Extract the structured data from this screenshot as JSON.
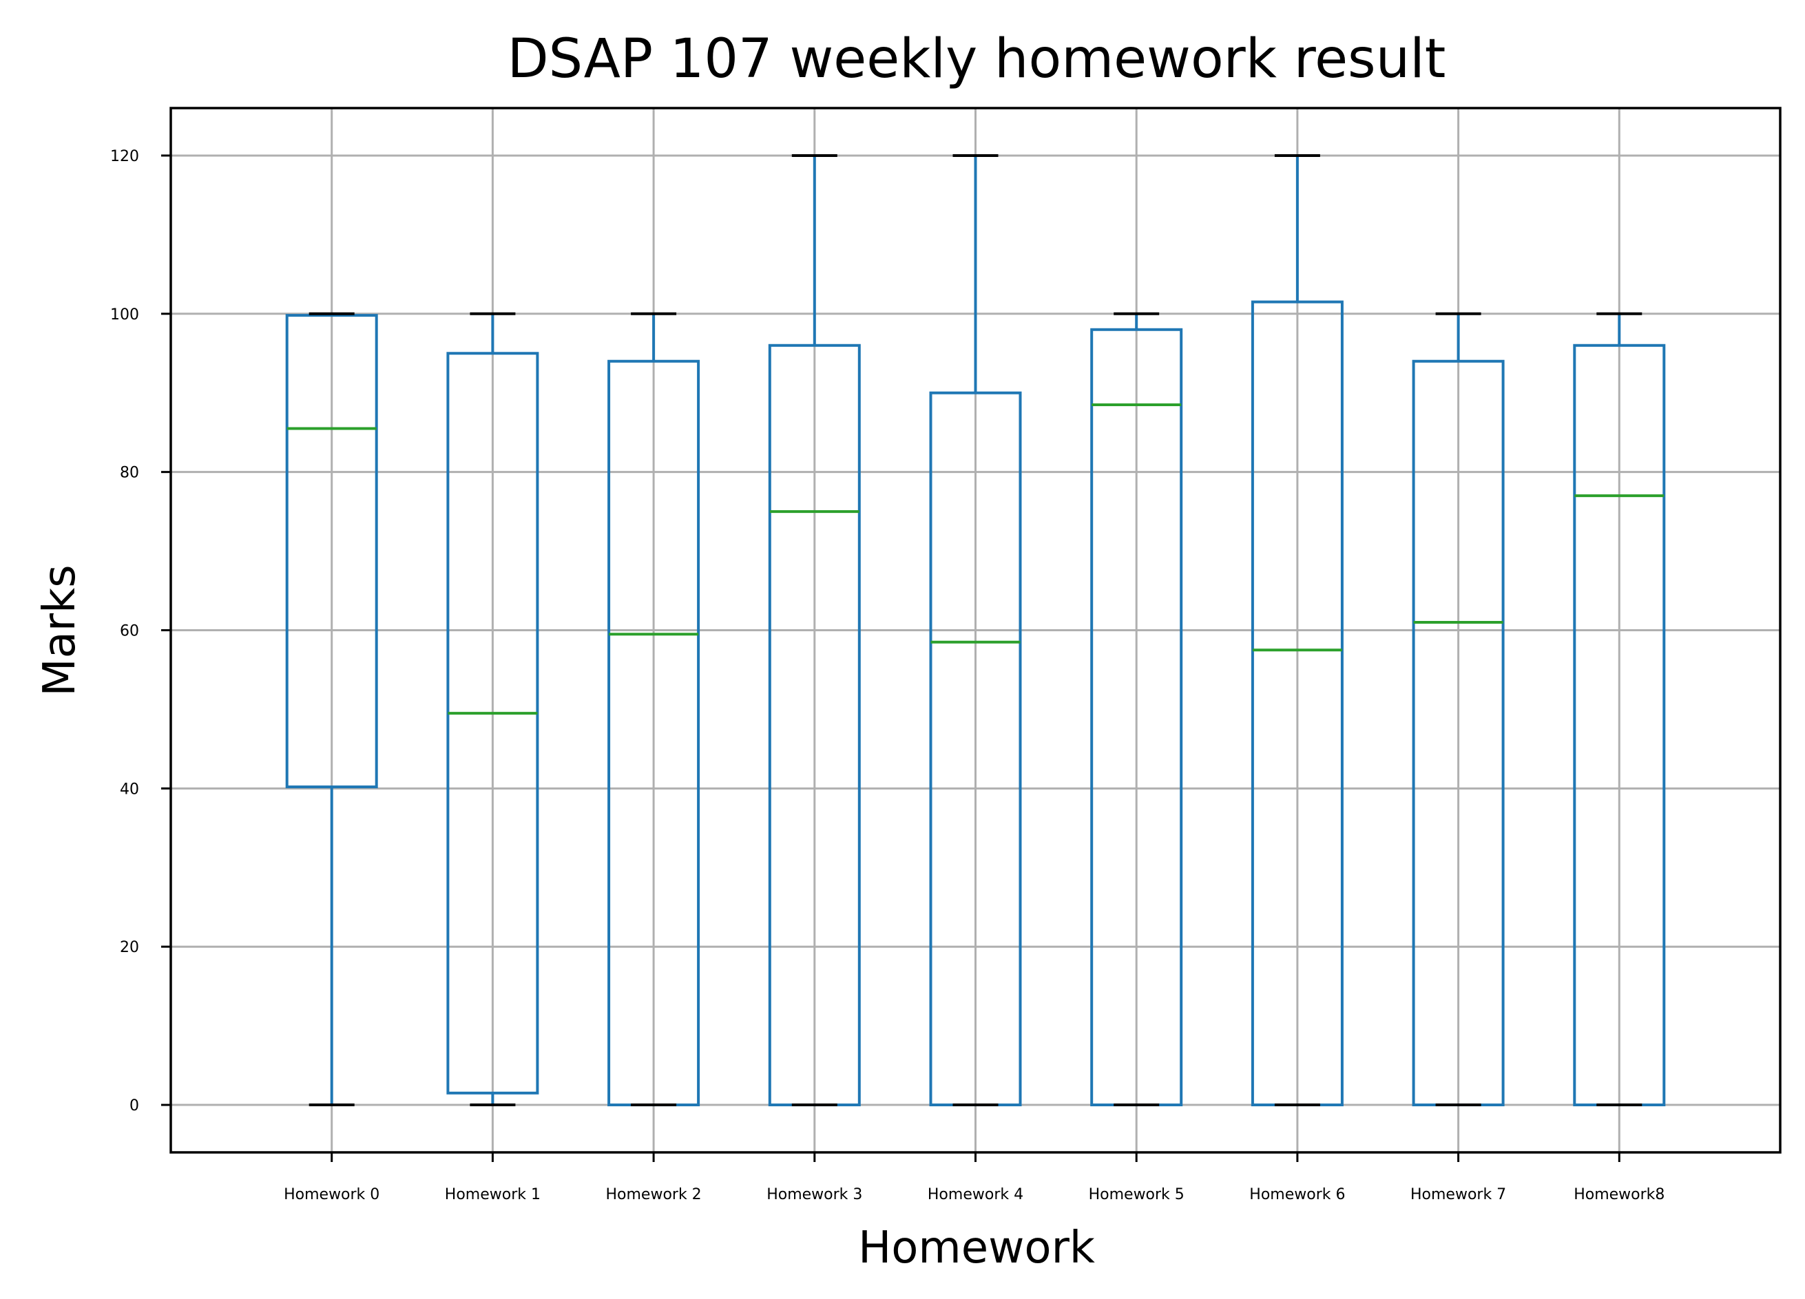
{
  "chart_data": {
    "type": "box",
    "title": "DSAP 107 weekly homework result",
    "xlabel": "Homework",
    "ylabel": "Marks",
    "ylim": [
      -6,
      126
    ],
    "yticks": [
      0,
      20,
      40,
      60,
      80,
      100,
      120
    ],
    "grid": true,
    "legend": "none",
    "colors": {
      "box": "#1f77b4",
      "median": "#2ca02c",
      "whisker_cap": "#000000",
      "grid": "#b0b0b0"
    },
    "categories": [
      "Homework 0",
      "Homework 1",
      "Homework 2",
      "Homework 3",
      "Homework 4",
      "Homework 5",
      "Homework 6",
      "Homework 7",
      "Homework8"
    ],
    "boxes": [
      {
        "whisker_low": 0,
        "q1": 40.2,
        "median": 85.5,
        "q3": 99.8,
        "whisker_high": 100
      },
      {
        "whisker_low": 0,
        "q1": 1.5,
        "median": 49.5,
        "q3": 95,
        "whisker_high": 100
      },
      {
        "whisker_low": 0,
        "q1": 0,
        "median": 59.5,
        "q3": 94,
        "whisker_high": 100
      },
      {
        "whisker_low": 0,
        "q1": 0,
        "median": 75,
        "q3": 96,
        "whisker_high": 120
      },
      {
        "whisker_low": 0,
        "q1": 0,
        "median": 58.5,
        "q3": 90,
        "whisker_high": 120
      },
      {
        "whisker_low": 0,
        "q1": 0,
        "median": 88.5,
        "q3": 98,
        "whisker_high": 100
      },
      {
        "whisker_low": 0,
        "q1": 0,
        "median": 57.5,
        "q3": 101.5,
        "whisker_high": 120
      },
      {
        "whisker_low": 0,
        "q1": 0,
        "median": 61,
        "q3": 94,
        "whisker_high": 100
      },
      {
        "whisker_low": 0,
        "q1": 0,
        "median": 77,
        "q3": 96,
        "whisker_high": 100
      }
    ]
  }
}
